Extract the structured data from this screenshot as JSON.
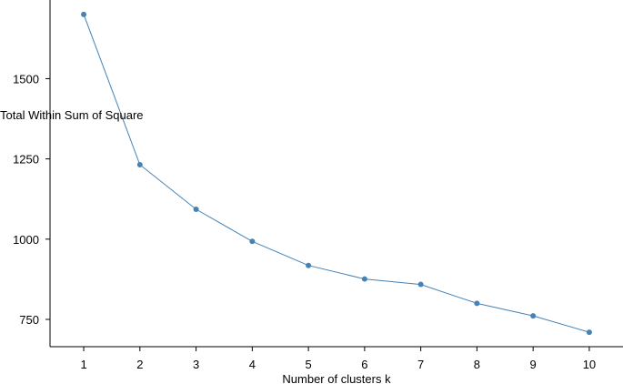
{
  "chart_data": {
    "type": "line",
    "title": "",
    "xlabel": "Number of clusters k",
    "ylabel": "Total Within Sum of Square",
    "x": [
      1,
      2,
      3,
      4,
      5,
      6,
      7,
      8,
      9,
      10
    ],
    "y": [
      1700,
      1232,
      1093,
      993,
      918,
      876,
      859,
      800,
      761,
      710
    ],
    "xticks": [
      1,
      2,
      3,
      4,
      5,
      6,
      7,
      8,
      9,
      10
    ],
    "yticks": [
      750,
      1000,
      1250,
      1500
    ],
    "xlim": [
      0.4,
      10.6
    ],
    "ylim": [
      665,
      1745
    ],
    "grid": false,
    "color": "#4682b4"
  }
}
